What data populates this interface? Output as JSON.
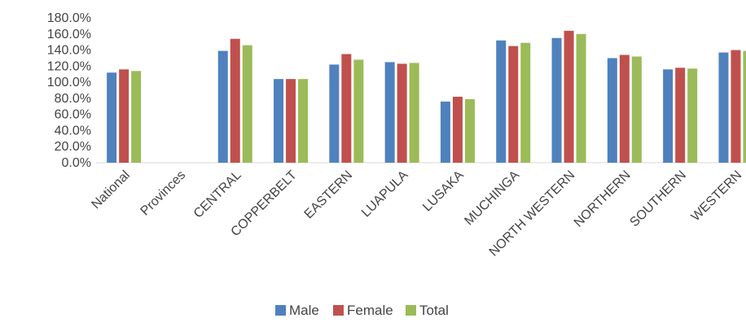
{
  "chart_data": {
    "type": "bar",
    "title": "",
    "xlabel": "",
    "ylabel": "",
    "ylim": [
      0,
      180
    ],
    "yticks": [
      "0.0%",
      "20.0%",
      "40.0%",
      "60.0%",
      "80.0%",
      "100.0%",
      "120.0%",
      "140.0%",
      "160.0%",
      "180.0%"
    ],
    "grid": false,
    "legend_position": "bottom",
    "categories": [
      "National",
      "Provinces",
      "CENTRAL",
      "COPPERBELT",
      "EASTERN",
      "LUAPULA",
      "LUSAKA",
      "MUCHINGA",
      "NORTH WESTERN",
      "NORTHERN",
      "SOUTHERN",
      "WESTERN"
    ],
    "series": [
      {
        "name": "Male",
        "color": "#4F81BD",
        "values": [
          112,
          null,
          139,
          104,
          122,
          125,
          76,
          152,
          155,
          130,
          116,
          137
        ]
      },
      {
        "name": "Female",
        "color": "#C0504D",
        "values": [
          116,
          null,
          154,
          104,
          135,
          123,
          82,
          145,
          164,
          134,
          118,
          140
        ]
      },
      {
        "name": "Total",
        "color": "#9BBB59",
        "values": [
          114,
          null,
          146,
          104,
          128,
          124,
          79,
          149,
          160,
          132,
          117,
          139
        ]
      }
    ]
  }
}
